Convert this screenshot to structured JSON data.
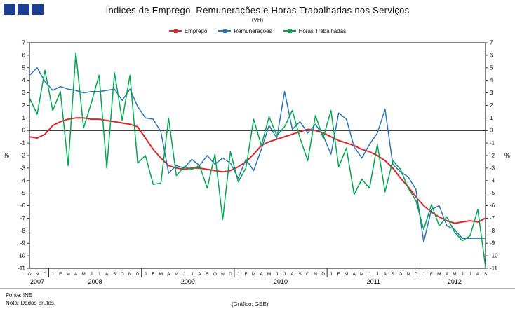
{
  "logo": {
    "square_color": "#1d3d91",
    "squares": 3
  },
  "footer": {
    "fonte": "Fonte: INE",
    "nota": "Nota: Dados brutos.",
    "grafico": "(Gráfico: GEE)"
  },
  "chart_data": {
    "type": "line",
    "title": "Índices de Emprego, Remunerações e Horas Trabalhadas nos Serviços",
    "subtitle": "(VH)",
    "ylabel_left": "%",
    "ylabel_right": "%",
    "ylim": [
      -11,
      7
    ],
    "ytick_step": 1,
    "grid": false,
    "legend_position": "top-center",
    "categories": [
      "O",
      "N",
      "D",
      "J",
      "F",
      "M",
      "A",
      "M",
      "J",
      "J",
      "A",
      "S",
      "O",
      "N",
      "D",
      "J",
      "F",
      "M",
      "A",
      "M",
      "J",
      "J",
      "A",
      "S",
      "O",
      "N",
      "D",
      "J",
      "F",
      "M",
      "A",
      "M",
      "J",
      "J",
      "A",
      "S",
      "O",
      "N",
      "D",
      "J",
      "F",
      "M",
      "A",
      "M",
      "J",
      "J",
      "A",
      "S",
      "O",
      "N",
      "D",
      "J",
      "F",
      "M",
      "A",
      "M",
      "J",
      "J",
      "A",
      "S"
    ],
    "years": [
      {
        "label": "2007",
        "months": 3
      },
      {
        "label": "2008",
        "months": 12
      },
      {
        "label": "2009",
        "months": 12
      },
      {
        "label": "2010",
        "months": 12
      },
      {
        "label": "2011",
        "months": 12
      },
      {
        "label": "2012",
        "months": 9
      }
    ],
    "series": [
      {
        "id": "emprego",
        "name": "Emprego",
        "color": "#d9282d",
        "values": [
          -0.5,
          -0.6,
          -0.3,
          0.4,
          0.7,
          0.9,
          1.0,
          1.0,
          0.9,
          0.9,
          0.8,
          0.7,
          0.6,
          0.5,
          0.3,
          -0.6,
          -1.5,
          -2.2,
          -2.8,
          -3.0,
          -3.1,
          -3.0,
          -3.0,
          -3.1,
          -3.2,
          -3.3,
          -3.2,
          -2.9,
          -2.5,
          -1.9,
          -1.2,
          -0.9,
          -0.7,
          -0.5,
          -0.3,
          -0.1,
          0.1,
          0.0,
          -0.2,
          -0.5,
          -0.8,
          -1.0,
          -1.2,
          -1.5,
          -1.7,
          -2.0,
          -2.4,
          -3.0,
          -3.8,
          -4.5,
          -5.3,
          -6.0,
          -6.5,
          -6.9,
          -7.2,
          -7.4,
          -7.3,
          -7.2,
          -7.3,
          -7.0
        ]
      },
      {
        "id": "remuneracoes",
        "name": "Remunerações",
        "color": "#2e74b5",
        "values": [
          4.4,
          5.0,
          3.9,
          3.2,
          3.5,
          3.3,
          3.2,
          3.0,
          3.1,
          3.1,
          3.2,
          3.3,
          2.4,
          3.3,
          1.9,
          1.0,
          0.9,
          -0.1,
          -3.4,
          -2.8,
          -3.0,
          -2.3,
          -2.8,
          -2.0,
          -2.7,
          -2.2,
          -2.6,
          -3.8,
          -2.3,
          -3.2,
          -1.5,
          0.4,
          -0.6,
          3.1,
          0.1,
          0.7,
          -0.2,
          0.5,
          -0.4,
          -1.9,
          1.4,
          0.9,
          -1.3,
          -2.2,
          -1.1,
          -0.2,
          1.7,
          -2.7,
          -3.3,
          -3.7,
          -4.7,
          -8.9,
          -6.3,
          -6.0,
          -7.6,
          -7.9,
          -8.6,
          -8.6,
          -8.6,
          -8.6
        ]
      },
      {
        "id": "horas-trabalhadas",
        "name": "Horas Trabalhadas",
        "color": "#00a550",
        "values": [
          2.6,
          1.3,
          4.8,
          1.6,
          3.1,
          -2.8,
          6.2,
          0.2,
          2.2,
          4.4,
          -3.0,
          4.6,
          0.8,
          4.4,
          -2.6,
          -2.0,
          -4.3,
          -4.2,
          1.0,
          -3.6,
          -2.9,
          -3.1,
          -2.8,
          -4.6,
          -1.9,
          -7.1,
          -1.7,
          -4.1,
          -3.0,
          0.9,
          -1.2,
          1.1,
          -0.4,
          0.3,
          1.6,
          -0.6,
          -2.4,
          1.2,
          -0.6,
          1.6,
          -2.9,
          -1.4,
          -5.1,
          -3.9,
          -4.6,
          -1.1,
          -4.9,
          -2.4,
          -3.1,
          -4.6,
          -5.6,
          -7.9,
          -5.9,
          -7.6,
          -6.9,
          -8.1,
          -8.8,
          -8.4,
          -6.3,
          -10.9
        ]
      }
    ]
  }
}
